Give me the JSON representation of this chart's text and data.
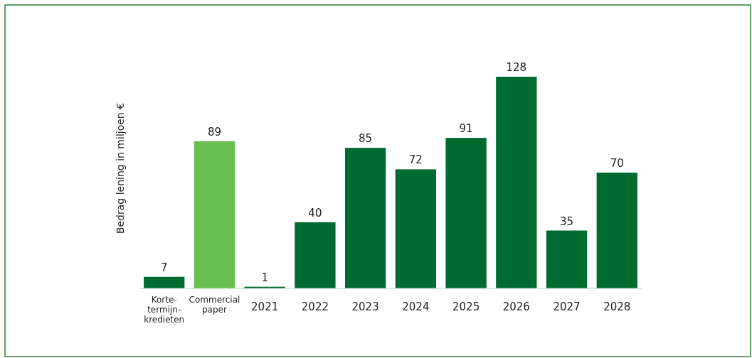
{
  "chart_data": {
    "type": "bar",
    "ylabel": "Bedrag lening in miljoen €",
    "categories": [
      "Korte-\ntermijn-\nkredieten",
      "Commercial\npaper",
      "2021",
      "2022",
      "2023",
      "2024",
      "2025",
      "2026",
      "2027",
      "2028"
    ],
    "values": [
      7,
      89,
      1,
      40,
      85,
      72,
      91,
      128,
      35,
      70
    ],
    "colors": [
      "#006b30",
      "#66bf4f",
      "#006b30",
      "#006b30",
      "#006b30",
      "#006b30",
      "#006b30",
      "#006b30",
      "#006b30",
      "#006b30"
    ],
    "data_labels": true
  }
}
